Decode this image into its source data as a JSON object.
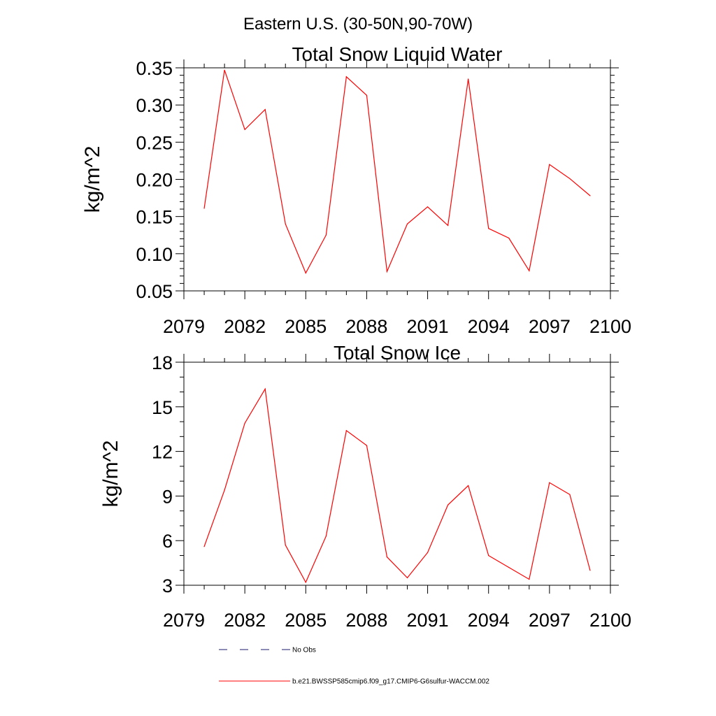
{
  "supertitle": "Eastern U.S. (30-50N,90-70W)",
  "legend": [
    {
      "label": "No Obs",
      "color": "#1a1a6e",
      "dash": "12,18"
    },
    {
      "label": "b.e21.BWSSP585cmip6.f09_g17.CMIP6-G6sulfur-WACCM.002",
      "color": "#ff0000",
      "dash": ""
    }
  ],
  "chart_data": [
    {
      "type": "line",
      "title": "Total Snow Liquid Water",
      "ylabel": "kg/m^2",
      "xlabel": "",
      "xlim": [
        2079,
        2100
      ],
      "ylim": [
        0.05,
        0.35
      ],
      "xticks": [
        2079,
        2082,
        2085,
        2088,
        2091,
        2094,
        2097,
        2100
      ],
      "yticks": [
        "0.05",
        "0.10",
        "0.15",
        "0.20",
        "0.25",
        "0.30",
        "0.35"
      ],
      "yminor_step": 0.01,
      "x": [
        2080,
        2081,
        2082,
        2083,
        2084,
        2085,
        2086,
        2087,
        2088,
        2089,
        2090,
        2091,
        2092,
        2093,
        2094,
        2095,
        2096,
        2097,
        2098,
        2099
      ],
      "series": [
        {
          "color": "#ff0000",
          "values": [
            0.161,
            0.347,
            0.267,
            0.294,
            0.14,
            0.074,
            0.125,
            0.338,
            0.313,
            0.076,
            0.14,
            0.163,
            0.138,
            0.335,
            0.134,
            0.121,
            0.077,
            0.22,
            0.201,
            0.178
          ]
        }
      ]
    },
    {
      "type": "line",
      "title": "Total Snow Ice",
      "ylabel": "kg/m^2",
      "xlabel": "",
      "xlim": [
        2079,
        2100
      ],
      "ylim": [
        3,
        18
      ],
      "xticks": [
        2079,
        2082,
        2085,
        2088,
        2091,
        2094,
        2097,
        2100
      ],
      "yticks": [
        "3",
        "6",
        "9",
        "12",
        "15",
        "18"
      ],
      "yminor_step": 1,
      "x": [
        2080,
        2081,
        2082,
        2083,
        2084,
        2085,
        2086,
        2087,
        2088,
        2089,
        2090,
        2091,
        2092,
        2093,
        2094,
        2095,
        2096,
        2097,
        2098,
        2099
      ],
      "series": [
        {
          "color": "#ff0000",
          "values": [
            5.6,
            9.4,
            13.9,
            16.2,
            5.7,
            3.2,
            6.3,
            13.4,
            12.4,
            4.9,
            3.5,
            5.2,
            8.4,
            9.7,
            5.0,
            4.2,
            3.4,
            9.9,
            9.1,
            4.0
          ]
        }
      ]
    }
  ]
}
